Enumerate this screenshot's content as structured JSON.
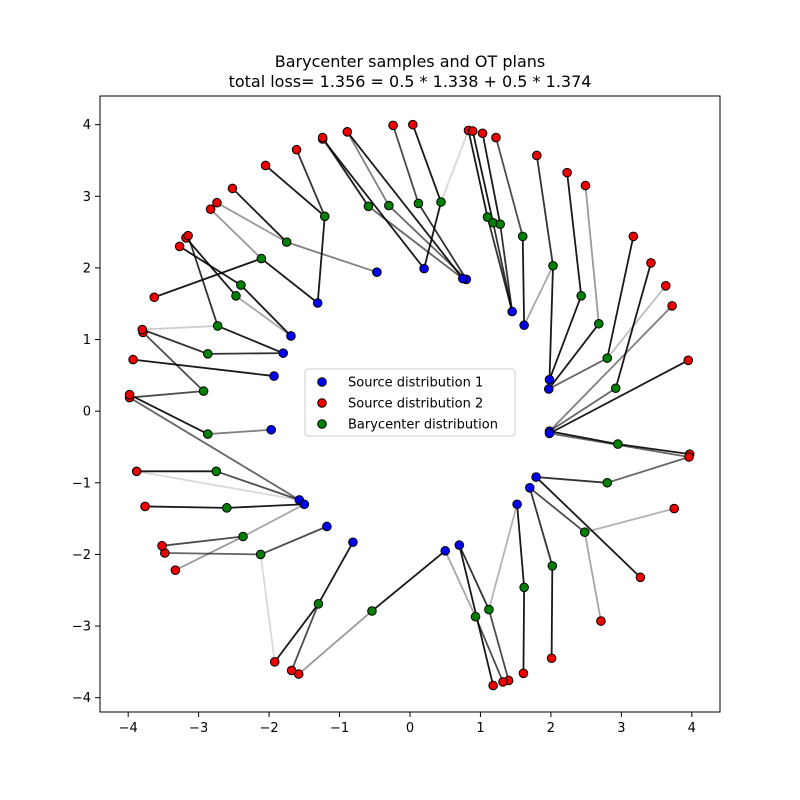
{
  "chart_data": {
    "type": "scatter",
    "title_line1": "Barycenter samples and OT plans",
    "title_line2": "total loss= 1.356 = 0.5 * 1.338 + 0.5 * 1.374",
    "xlabel": "",
    "ylabel": "",
    "xlim": [
      -4.4,
      4.4
    ],
    "ylim": [
      -4.2,
      4.4
    ],
    "xticks": [
      -4,
      -3,
      -2,
      -1,
      0,
      1,
      2,
      3,
      4
    ],
    "yticks": [
      -4,
      -3,
      -2,
      -1,
      0,
      1,
      2,
      3,
      4
    ],
    "grid": false,
    "legend_position": "center",
    "colors": {
      "source1": "#0000ee",
      "source2": "#ee0000",
      "barycenter": "#008000",
      "edge": "#000000"
    },
    "series": [
      {
        "name": "Source distribution 1",
        "color": "#0000ee",
        "points": [
          [
            -0.47,
            1.94
          ],
          [
            0.2,
            1.99
          ],
          [
            0.8,
            1.84
          ],
          [
            0.75,
            1.85
          ],
          [
            1.45,
            1.39
          ],
          [
            1.62,
            1.2
          ],
          [
            -1.31,
            1.51
          ],
          [
            -1.69,
            1.05
          ],
          [
            -1.8,
            0.81
          ],
          [
            -1.93,
            0.49
          ],
          [
            -1.97,
            -0.26
          ],
          [
            -1.57,
            -1.24
          ],
          [
            -1.5,
            -1.3
          ],
          [
            -1.18,
            -1.61
          ],
          [
            -0.81,
            -1.83
          ],
          [
            0.5,
            -1.95
          ],
          [
            0.7,
            -1.87
          ],
          [
            1.52,
            -1.3
          ],
          [
            1.7,
            -1.07
          ],
          [
            1.79,
            -0.92
          ],
          [
            1.98,
            -0.28
          ],
          [
            1.98,
            -0.31
          ],
          [
            1.97,
            0.31
          ],
          [
            1.98,
            0.44
          ]
        ]
      },
      {
        "name": "Source distribution 2",
        "color": "#ee0000",
        "points": [
          [
            -0.24,
            3.99
          ],
          [
            0.04,
            4.0
          ],
          [
            0.83,
            3.92
          ],
          [
            0.89,
            3.91
          ],
          [
            1.03,
            3.88
          ],
          [
            1.22,
            3.82
          ],
          [
            1.8,
            3.57
          ],
          [
            2.23,
            3.33
          ],
          [
            2.49,
            3.15
          ],
          [
            3.17,
            2.44
          ],
          [
            3.42,
            2.07
          ],
          [
            3.63,
            1.75
          ],
          [
            3.72,
            1.47
          ],
          [
            3.95,
            0.71
          ],
          [
            3.97,
            -0.6
          ],
          [
            3.96,
            -0.64
          ],
          [
            3.75,
            -1.36
          ],
          [
            3.27,
            -2.32
          ],
          [
            2.71,
            -2.93
          ],
          [
            2.01,
            -3.45
          ],
          [
            1.61,
            -3.66
          ],
          [
            1.4,
            -3.76
          ],
          [
            1.32,
            -3.78
          ],
          [
            1.18,
            -3.83
          ],
          [
            -1.58,
            -3.67
          ],
          [
            -1.68,
            -3.62
          ],
          [
            -1.92,
            -3.5
          ],
          [
            -3.33,
            -2.22
          ],
          [
            -3.48,
            -1.98
          ],
          [
            -3.52,
            -1.88
          ],
          [
            -3.76,
            -1.33
          ],
          [
            -3.88,
            -0.84
          ],
          [
            -3.98,
            0.19
          ],
          [
            -3.98,
            0.23
          ],
          [
            -3.93,
            0.72
          ],
          [
            -3.79,
            1.1
          ],
          [
            -3.8,
            1.14
          ],
          [
            -3.63,
            1.59
          ],
          [
            -3.18,
            2.42
          ],
          [
            -3.15,
            2.45
          ],
          [
            -3.27,
            2.3
          ],
          [
            -2.83,
            2.82
          ],
          [
            -2.74,
            2.91
          ],
          [
            -2.52,
            3.11
          ],
          [
            -2.05,
            3.43
          ],
          [
            -1.61,
            3.65
          ],
          [
            -1.24,
            3.8
          ],
          [
            -1.24,
            3.82
          ],
          [
            -0.89,
            3.9
          ]
        ]
      },
      {
        "name": "Barycenter distribution",
        "color": "#008000",
        "points": [
          [
            -0.59,
            2.86
          ],
          [
            -0.3,
            2.87
          ],
          [
            0.12,
            2.9
          ],
          [
            0.44,
            2.92
          ],
          [
            1.1,
            2.71
          ],
          [
            1.18,
            2.63
          ],
          [
            1.28,
            2.61
          ],
          [
            1.6,
            2.44
          ],
          [
            2.03,
            2.03
          ],
          [
            2.43,
            1.61
          ],
          [
            2.68,
            1.22
          ],
          [
            2.8,
            0.74
          ],
          [
            2.92,
            0.32
          ],
          [
            2.95,
            -0.46
          ],
          [
            2.8,
            -1.0
          ],
          [
            2.48,
            -1.69
          ],
          [
            2.02,
            -2.16
          ],
          [
            1.62,
            -2.46
          ],
          [
            1.12,
            -2.77
          ],
          [
            0.93,
            -2.87
          ],
          [
            -0.54,
            -2.79
          ],
          [
            -1.3,
            -2.69
          ],
          [
            -2.12,
            -2.0
          ],
          [
            -2.37,
            -1.75
          ],
          [
            -2.6,
            -1.35
          ],
          [
            -2.75,
            -0.84
          ],
          [
            -2.87,
            -0.32
          ],
          [
            -2.93,
            0.28
          ],
          [
            -2.87,
            0.8
          ],
          [
            -2.73,
            1.19
          ],
          [
            -2.47,
            1.61
          ],
          [
            -2.4,
            1.76
          ],
          [
            -2.11,
            2.13
          ],
          [
            -1.75,
            2.36
          ],
          [
            -1.21,
            2.72
          ]
        ]
      }
    ],
    "ot_plan_edges": [
      [
        -0.59,
        2.86,
        -1.24,
        3.82,
        0.8
      ],
      [
        -0.59,
        2.86,
        0.75,
        1.85,
        0.6
      ],
      [
        -0.3,
        2.87,
        -0.89,
        3.9,
        0.5
      ],
      [
        -0.3,
        2.87,
        0.8,
        1.84,
        0.6
      ],
      [
        0.12,
        2.9,
        -0.24,
        3.99,
        0.7
      ],
      [
        0.12,
        2.9,
        0.8,
        1.84,
        0.8
      ],
      [
        0.44,
        2.92,
        0.04,
        4.0,
        0.9
      ],
      [
        0.44,
        2.92,
        0.2,
        1.99,
        0.9
      ],
      [
        0.44,
        2.92,
        0.83,
        3.92,
        0.15
      ],
      [
        1.1,
        2.71,
        0.83,
        3.92,
        0.9
      ],
      [
        1.1,
        2.71,
        1.45,
        1.39,
        0.8
      ],
      [
        1.18,
        2.63,
        0.89,
        3.91,
        0.9
      ],
      [
        1.18,
        2.63,
        1.45,
        1.39,
        0.8
      ],
      [
        1.28,
        2.61,
        1.03,
        3.88,
        0.9
      ],
      [
        1.28,
        2.61,
        1.45,
        1.39,
        0.8
      ],
      [
        1.6,
        2.44,
        1.22,
        3.82,
        0.7
      ],
      [
        1.6,
        2.44,
        1.62,
        1.2,
        0.9
      ],
      [
        2.03,
        2.03,
        1.8,
        3.57,
        0.8
      ],
      [
        2.03,
        2.03,
        1.62,
        1.2,
        0.35
      ],
      [
        2.03,
        2.03,
        1.98,
        0.44,
        0.9
      ],
      [
        2.43,
        1.61,
        2.23,
        3.33,
        0.9
      ],
      [
        2.43,
        1.61,
        1.98,
        0.44,
        0.9
      ],
      [
        2.68,
        1.22,
        2.49,
        3.15,
        0.4
      ],
      [
        2.68,
        1.22,
        1.97,
        0.31,
        0.9
      ],
      [
        2.8,
        0.74,
        3.17,
        2.44,
        0.9
      ],
      [
        2.8,
        0.74,
        1.97,
        0.31,
        0.6
      ],
      [
        2.8,
        0.74,
        3.63,
        1.75,
        0.25
      ],
      [
        2.92,
        0.32,
        3.42,
        2.07,
        0.9
      ],
      [
        2.92,
        0.32,
        1.98,
        -0.28,
        0.6
      ],
      [
        1.98,
        -0.28,
        3.72,
        1.47,
        0.5
      ],
      [
        1.98,
        -0.31,
        3.95,
        0.71,
        0.9
      ],
      [
        2.95,
        -0.46,
        1.98,
        -0.28,
        0.9
      ],
      [
        2.95,
        -0.46,
        3.97,
        -0.6,
        0.9
      ],
      [
        1.98,
        -0.31,
        3.96,
        -0.64,
        0.6
      ],
      [
        2.8,
        -1.0,
        1.79,
        -0.92,
        0.8
      ],
      [
        2.8,
        -1.0,
        3.96,
        -0.64,
        0.6
      ],
      [
        2.48,
        -1.69,
        1.7,
        -1.07,
        0.7
      ],
      [
        2.48,
        -1.69,
        3.75,
        -1.36,
        0.3
      ],
      [
        2.48,
        -1.69,
        2.71,
        -2.93,
        0.35
      ],
      [
        1.79,
        -0.92,
        3.27,
        -2.32,
        0.9
      ],
      [
        2.02,
        -2.16,
        1.7,
        -1.07,
        0.8
      ],
      [
        2.02,
        -2.16,
        2.01,
        -3.45,
        0.9
      ],
      [
        1.62,
        -2.46,
        1.52,
        -1.3,
        0.9
      ],
      [
        1.62,
        -2.46,
        1.61,
        -3.66,
        0.9
      ],
      [
        1.12,
        -2.77,
        1.52,
        -1.3,
        0.3
      ],
      [
        1.12,
        -2.77,
        1.4,
        -3.76,
        0.7
      ],
      [
        1.12,
        -2.77,
        0.7,
        -1.87,
        0.8
      ],
      [
        0.93,
        -2.87,
        0.5,
        -1.95,
        0.35
      ],
      [
        0.93,
        -2.87,
        1.32,
        -3.78,
        0.7
      ],
      [
        0.7,
        -1.87,
        1.18,
        -3.83,
        0.9
      ],
      [
        -0.54,
        -2.79,
        0.5,
        -1.95,
        0.9
      ],
      [
        -0.54,
        -2.79,
        -1.58,
        -3.67,
        0.4
      ],
      [
        -1.3,
        -2.69,
        -0.81,
        -1.83,
        0.9
      ],
      [
        -1.3,
        -2.69,
        -1.68,
        -3.62,
        0.7
      ],
      [
        -1.3,
        -2.69,
        -1.92,
        -3.5,
        0.9
      ],
      [
        -2.12,
        -2.0,
        -1.92,
        -3.5,
        0.15
      ],
      [
        -2.12,
        -2.0,
        -1.18,
        -1.61,
        0.7
      ],
      [
        -2.12,
        -2.0,
        -3.48,
        -1.98,
        0.6
      ],
      [
        -2.37,
        -1.75,
        -1.5,
        -1.3,
        0.35
      ],
      [
        -2.37,
        -1.75,
        -3.52,
        -1.88,
        0.7
      ],
      [
        -2.37,
        -1.75,
        -3.33,
        -2.22,
        0.4
      ],
      [
        -2.6,
        -1.35,
        -1.5,
        -1.3,
        0.9
      ],
      [
        -2.6,
        -1.35,
        -3.76,
        -1.33,
        0.9
      ],
      [
        -3.88,
        -0.84,
        -1.57,
        -1.24,
        0.15
      ],
      [
        -2.75,
        -0.84,
        -1.57,
        -1.24,
        0.7
      ],
      [
        -2.75,
        -0.84,
        -3.88,
        -0.84,
        0.9
      ],
      [
        -3.98,
        0.19,
        -1.57,
        -1.24,
        0.6
      ],
      [
        -2.87,
        -0.32,
        -1.97,
        -0.26,
        0.5
      ],
      [
        -2.87,
        -0.32,
        -3.98,
        0.23,
        0.9
      ],
      [
        -2.93,
        0.28,
        -3.98,
        0.19,
        0.7
      ],
      [
        -2.93,
        0.28,
        -3.79,
        1.1,
        0.7
      ],
      [
        -3.93,
        0.72,
        -1.93,
        0.49,
        0.9
      ],
      [
        -2.87,
        0.8,
        -3.8,
        1.14,
        0.8
      ],
      [
        -2.87,
        0.8,
        -1.8,
        0.81,
        0.8
      ],
      [
        -2.73,
        1.19,
        -3.8,
        1.14,
        0.2
      ],
      [
        -2.73,
        1.19,
        -1.8,
        0.81,
        0.9
      ],
      [
        -2.73,
        1.19,
        -3.15,
        2.45,
        0.8
      ],
      [
        -2.47,
        1.61,
        -3.18,
        2.42,
        0.9
      ],
      [
        -2.47,
        1.61,
        -1.69,
        1.05,
        0.35
      ],
      [
        -2.4,
        1.76,
        -3.27,
        2.3,
        0.9
      ],
      [
        -2.4,
        1.76,
        -1.69,
        1.05,
        0.9
      ],
      [
        -3.63,
        1.59,
        -2.11,
        2.13,
        0.9
      ],
      [
        -2.11,
        2.13,
        -1.31,
        1.51,
        0.9
      ],
      [
        -2.11,
        2.13,
        -2.83,
        2.82,
        0.4
      ],
      [
        -1.75,
        2.36,
        -2.74,
        2.91,
        0.4
      ],
      [
        -1.75,
        2.36,
        -2.52,
        3.11,
        0.9
      ],
      [
        -1.75,
        2.36,
        -0.47,
        1.94,
        0.5
      ],
      [
        -1.21,
        2.72,
        -1.61,
        3.65,
        0.8
      ],
      [
        -1.21,
        2.72,
        -2.05,
        3.43,
        0.9
      ],
      [
        -1.21,
        2.72,
        -1.31,
        1.51,
        0.9
      ],
      [
        -0.59,
        2.86,
        -1.24,
        3.8,
        0.35
      ],
      [
        0.2,
        1.99,
        -1.24,
        3.8,
        0.9
      ],
      [
        0.75,
        1.85,
        -0.89,
        3.9,
        0.9
      ]
    ]
  }
}
